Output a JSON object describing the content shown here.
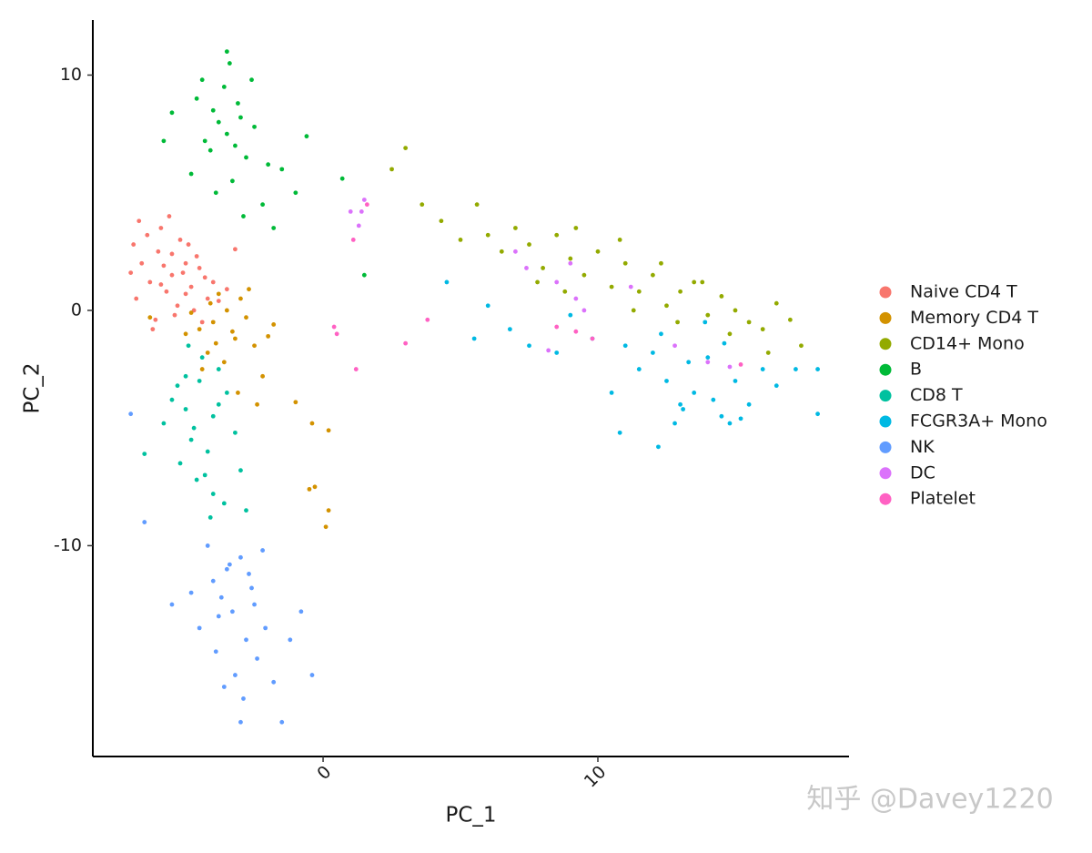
{
  "chart_data": {
    "type": "scatter",
    "x_label": "PC_1",
    "y_label": "PC_2",
    "xlim": [
      -8.38,
      19.14
    ],
    "ylim": [
      -18.96,
      12.34
    ],
    "xticks": [
      0,
      10
    ],
    "yticks": [
      -10,
      0,
      10
    ],
    "legend": "right",
    "watermark": "知乎 @Davey1220",
    "series": [
      {
        "name": "Naive CD4 T",
        "color": "#F8766D",
        "x": [
          -5.5,
          -5.0,
          -4.8,
          -6.0,
          -5.7,
          -4.5,
          -4.2,
          -6.3,
          -5.2,
          -5.9,
          -4.9,
          -6.6,
          -7.0,
          -6.8,
          -5.4,
          -4.0,
          -3.8,
          -5.1,
          -6.1,
          -4.6,
          -5.3,
          -5.8,
          -6.4,
          -4.3,
          -3.5,
          -6.9,
          -5.6,
          -4.7,
          -5.0,
          -6.2,
          -3.2,
          -5.5,
          -4.4,
          -6.7,
          -5.9
        ],
        "values": [
          1.5,
          2.0,
          1.0,
          2.5,
          0.8,
          1.8,
          0.5,
          1.2,
          3.0,
          3.5,
          2.8,
          2.0,
          1.6,
          0.5,
          -0.2,
          1.2,
          0.4,
          1.6,
          -0.4,
          2.3,
          0.2,
          1.9,
          3.2,
          1.4,
          0.9,
          2.8,
          4.0,
          0.0,
          0.7,
          -0.8,
          2.6,
          2.4,
          -0.5,
          3.8,
          1.1
        ]
      },
      {
        "name": "Memory CD4 T",
        "color": "#D39200",
        "x": [
          -4.0,
          -3.5,
          -3.2,
          -4.5,
          -4.2,
          -3.0,
          -2.8,
          -3.8,
          -4.8,
          -2.5,
          -3.6,
          -4.1,
          -3.3,
          -2.2,
          -5.0,
          -3.9,
          -2.7,
          -4.4,
          -1.8,
          -3.1,
          -6.3,
          -2.0,
          -1.0,
          -0.4,
          -0.3,
          0.2,
          0.2,
          0.1,
          -0.5,
          -2.4
        ],
        "values": [
          -0.5,
          0.0,
          -1.2,
          -0.8,
          -1.8,
          0.5,
          -0.3,
          0.7,
          -0.1,
          -1.5,
          -2.2,
          0.3,
          -0.9,
          -2.8,
          -1.0,
          -1.4,
          0.9,
          -2.5,
          -0.6,
          -3.5,
          -0.3,
          -1.1,
          -3.9,
          -4.8,
          -7.5,
          -5.1,
          -8.5,
          -9.2,
          -7.6,
          -4.0
        ]
      },
      {
        "name": "CD14+ Mono",
        "color": "#93AA00",
        "x": [
          2.5,
          3.0,
          3.6,
          4.3,
          5.0,
          5.6,
          6.0,
          6.5,
          7.0,
          7.5,
          8.0,
          8.5,
          9.0,
          9.5,
          10.0,
          10.5,
          11.0,
          11.5,
          12.0,
          12.5,
          13.0,
          13.5,
          14.0,
          14.5,
          15.0,
          15.5,
          16.0,
          16.5,
          17.0,
          17.4,
          9.2,
          10.8,
          12.3,
          13.8,
          7.8,
          11.3,
          14.8,
          16.2,
          8.8,
          12.9
        ],
        "values": [
          6.0,
          6.9,
          4.5,
          3.8,
          3.0,
          4.5,
          3.2,
          2.5,
          3.5,
          2.8,
          1.8,
          3.2,
          2.2,
          1.5,
          2.5,
          1.0,
          2.0,
          0.8,
          1.5,
          0.2,
          0.8,
          1.2,
          -0.2,
          0.6,
          0.0,
          -0.5,
          -0.8,
          0.3,
          -0.4,
          -1.5,
          3.5,
          3.0,
          2.0,
          1.2,
          1.2,
          0.0,
          -1.0,
          -1.8,
          0.8,
          -0.5
        ]
      },
      {
        "name": "B",
        "color": "#00BA38",
        "x": [
          -3.5,
          -3.8,
          -3.2,
          -4.0,
          -3.0,
          -2.8,
          -4.3,
          -3.6,
          -2.5,
          -4.6,
          -5.5,
          -2.0,
          -1.5,
          -0.6,
          -3.4,
          -4.1,
          -3.3,
          -2.2,
          -1.0,
          -5.8,
          -3.5,
          -2.6,
          -3.9,
          -4.8,
          -1.8,
          -2.9,
          0.7,
          1.5,
          -3.1,
          -4.4
        ],
        "values": [
          7.5,
          8.0,
          7.0,
          8.5,
          8.2,
          6.5,
          7.2,
          9.5,
          7.8,
          9.0,
          8.4,
          6.2,
          6.0,
          7.4,
          10.5,
          6.8,
          5.5,
          4.5,
          5.0,
          7.2,
          11.0,
          9.8,
          5.0,
          5.8,
          3.5,
          4.0,
          5.6,
          1.5,
          8.8,
          9.8
        ]
      },
      {
        "name": "CD8 T",
        "color": "#00C19F",
        "x": [
          -4.5,
          -5.0,
          -4.0,
          -3.8,
          -4.8,
          -5.5,
          -4.2,
          -3.5,
          -5.2,
          -4.6,
          -4.0,
          -3.2,
          -5.8,
          -4.4,
          -3.6,
          -4.9,
          -4.1,
          -3.0,
          -5.3,
          -4.7,
          -6.5,
          -3.8,
          -4.3,
          -5.0,
          -2.8
        ],
        "values": [
          -3.0,
          -4.2,
          -4.5,
          -2.5,
          -5.5,
          -3.8,
          -6.0,
          -3.5,
          -6.5,
          -7.2,
          -7.8,
          -5.2,
          -4.8,
          -2.0,
          -8.2,
          -1.5,
          -8.8,
          -6.8,
          -3.2,
          -5.0,
          -6.1,
          -4.0,
          -7.0,
          -2.8,
          -8.5
        ]
      },
      {
        "name": "FCGR3A+ Mono",
        "color": "#00B9E3",
        "x": [
          11.5,
          12.0,
          12.5,
          13.0,
          13.5,
          14.0,
          14.5,
          15.0,
          15.5,
          16.0,
          12.8,
          13.3,
          14.2,
          11.0,
          10.5,
          9.8,
          12.2,
          14.8,
          16.5,
          17.2,
          18.0,
          18.0,
          6.0,
          5.5,
          4.5,
          6.8,
          7.5,
          8.5,
          9.0,
          10.8,
          12.3,
          13.9,
          15.2,
          14.6,
          13.1
        ],
        "values": [
          -2.5,
          -1.8,
          -3.0,
          -4.0,
          -3.5,
          -2.0,
          -4.5,
          -3.0,
          -4.0,
          -2.5,
          -4.8,
          -2.2,
          -3.8,
          -1.5,
          -3.5,
          -1.2,
          -5.8,
          -4.8,
          -3.2,
          -2.5,
          -2.5,
          -4.4,
          0.2,
          -1.2,
          1.2,
          -0.8,
          -1.5,
          -1.8,
          -0.2,
          -5.2,
          -1.0,
          -0.5,
          -4.6,
          -1.4,
          -4.2
        ]
      },
      {
        "name": "NK",
        "color": "#619CFF",
        "x": [
          -3.5,
          -3.0,
          -2.5,
          -4.0,
          -3.8,
          -2.8,
          -3.2,
          -4.5,
          -2.2,
          -3.6,
          -1.8,
          -4.8,
          -3.3,
          -2.6,
          -3.9,
          -2.9,
          -1.2,
          -0.8,
          -0.4,
          -5.5,
          -6.5,
          -7.0,
          -3.0,
          -1.5,
          -2.1,
          -3.4,
          -4.2,
          -2.4,
          -3.7,
          -2.7
        ],
        "values": [
          -11.0,
          -10.5,
          -12.5,
          -11.5,
          -13.0,
          -14.0,
          -15.5,
          -13.5,
          -10.2,
          -16.0,
          -15.8,
          -12.0,
          -12.8,
          -11.8,
          -14.5,
          -16.5,
          -14.0,
          -12.8,
          -15.5,
          -12.5,
          -9.0,
          -4.4,
          -17.5,
          -17.5,
          -13.5,
          -10.8,
          -10.0,
          -14.8,
          -12.2,
          -11.2
        ]
      },
      {
        "name": "DC",
        "color": "#DB72FB",
        "x": [
          1.5,
          1.4,
          1.3,
          7.0,
          7.4,
          8.5,
          9.0,
          9.2,
          9.5,
          11.2,
          12.8,
          14.0,
          14.8,
          1.0,
          8.2
        ],
        "values": [
          4.7,
          4.2,
          3.6,
          2.5,
          1.8,
          1.2,
          2.0,
          0.5,
          0.0,
          1.0,
          -1.5,
          -2.2,
          -2.4,
          4.2,
          -1.7
        ]
      },
      {
        "name": "Platelet",
        "color": "#FF61C3",
        "x": [
          0.4,
          0.5,
          3.0,
          3.8,
          1.2,
          9.2,
          9.8,
          8.5,
          15.2,
          1.1,
          1.6
        ],
        "values": [
          -0.7,
          -1.0,
          -1.4,
          -0.4,
          -2.5,
          -0.9,
          -1.2,
          -0.7,
          -2.3,
          3.0,
          4.5
        ]
      }
    ]
  }
}
